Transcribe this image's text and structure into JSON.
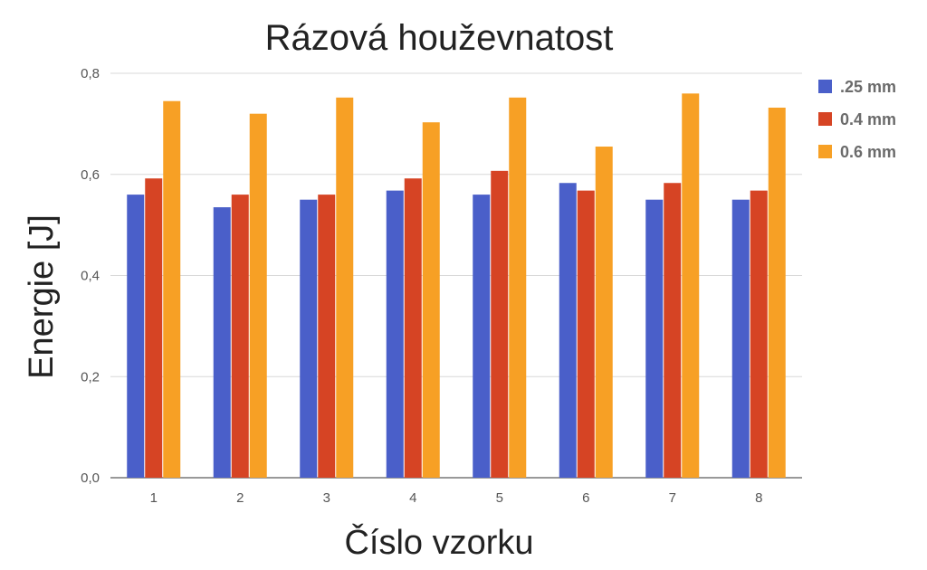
{
  "chart_data": {
    "type": "bar",
    "title": "Rázová houževnatost",
    "xlabel": "Číslo vzorku",
    "ylabel": "Energie [J]",
    "categories": [
      "1",
      "2",
      "3",
      "4",
      "5",
      "6",
      "7",
      "8"
    ],
    "ylim": [
      0,
      0.8
    ],
    "yticks": [
      "0,0",
      "0,2",
      "0,4",
      "0,6",
      "0,8"
    ],
    "ytick_values": [
      0,
      0.2,
      0.4,
      0.6,
      0.8
    ],
    "grid": true,
    "legend_position": "right",
    "series": [
      {
        "name": ".25 mm",
        "color": "#4a5fc9",
        "values": [
          0.56,
          0.535,
          0.55,
          0.568,
          0.56,
          0.583,
          0.55,
          0.55
        ]
      },
      {
        "name": "0.4 mm",
        "color": "#d64424",
        "values": [
          0.592,
          0.56,
          0.56,
          0.592,
          0.607,
          0.568,
          0.583,
          0.568
        ]
      },
      {
        "name": "0.6 mm",
        "color": "#f7a025",
        "values": [
          0.745,
          0.72,
          0.752,
          0.703,
          0.752,
          0.655,
          0.76,
          0.732
        ]
      }
    ]
  }
}
